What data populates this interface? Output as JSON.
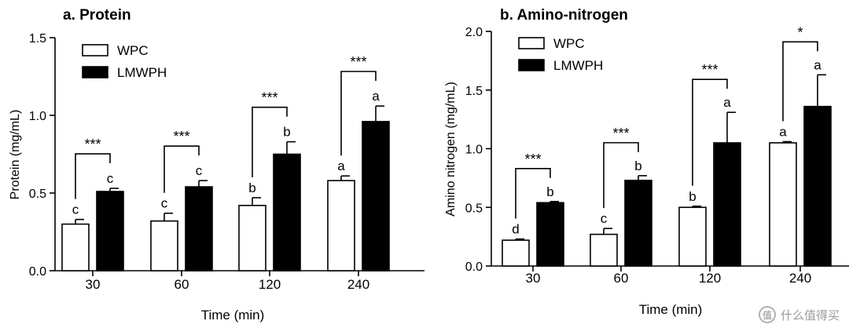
{
  "watermark": {
    "logo_icon": "smzdm-logo-icon",
    "text": "什么值得买"
  },
  "chart_data": [
    {
      "type": "bar",
      "title": "a. Protein",
      "xlabel": "Time (min)",
      "ylabel": "Protein (mg/mL)",
      "ylim": [
        0,
        1.5
      ],
      "yticks": [
        0.0,
        0.5,
        1.0,
        1.5
      ],
      "ytick_labels": [
        "0.0",
        "0.5",
        "1.0",
        "1.5"
      ],
      "categories": [
        "30",
        "60",
        "120",
        "240"
      ],
      "legend_position": "top-left",
      "series": [
        {
          "name": "WPC",
          "color": "#ffffff",
          "values": [
            0.3,
            0.32,
            0.42,
            0.58
          ],
          "errors": [
            0.03,
            0.05,
            0.05,
            0.03
          ],
          "letters": [
            "c",
            "c",
            "b",
            "a"
          ]
        },
        {
          "name": "LMWPH",
          "color": "#000000",
          "values": [
            0.51,
            0.54,
            0.75,
            0.96
          ],
          "errors": [
            0.02,
            0.04,
            0.08,
            0.1
          ],
          "letters": [
            "c",
            "c",
            "b",
            "a"
          ]
        }
      ],
      "significance": [
        "***",
        "***",
        "***",
        "***"
      ]
    },
    {
      "type": "bar",
      "title": "b. Amino-nitrogen",
      "xlabel": "Time (min)",
      "ylabel": "Amino nitrogen (mg/mL)",
      "ylim": [
        0,
        2.0
      ],
      "yticks": [
        0.0,
        0.5,
        1.0,
        1.5,
        2.0
      ],
      "ytick_labels": [
        "0.0",
        "0.5",
        "1.0",
        "1.5",
        "2.0"
      ],
      "categories": [
        "30",
        "60",
        "120",
        "240"
      ],
      "legend_position": "top-left",
      "series": [
        {
          "name": "WPC",
          "color": "#ffffff",
          "values": [
            0.22,
            0.27,
            0.5,
            1.05
          ],
          "errors": [
            0.01,
            0.05,
            0.01,
            0.01
          ],
          "letters": [
            "d",
            "c",
            "b",
            "a"
          ]
        },
        {
          "name": "LMWPH",
          "color": "#000000",
          "values": [
            0.54,
            0.73,
            1.05,
            1.36
          ],
          "errors": [
            0.01,
            0.04,
            0.26,
            0.27
          ],
          "letters": [
            "b",
            "b",
            "a",
            "a"
          ]
        }
      ],
      "significance": [
        "***",
        "***",
        "***",
        "*"
      ]
    }
  ]
}
